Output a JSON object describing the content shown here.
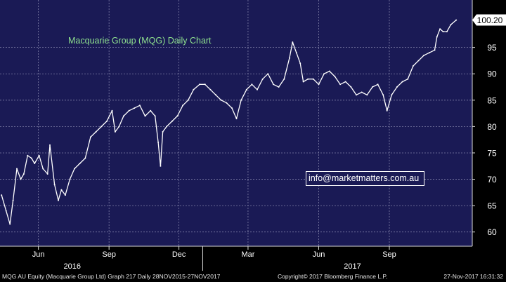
{
  "chart_data": {
    "type": "line",
    "title": "Macquarie Group (MQG) Daily Chart",
    "watermark": "info@marketmatters.com.au",
    "last_value": "100.20",
    "y_ticks": [
      60,
      65,
      70,
      75,
      80,
      85,
      90,
      95
    ],
    "ylim": [
      57.3,
      104
    ],
    "x_ticks": [
      {
        "date": "2016-06-01",
        "label": "Jun"
      },
      {
        "date": "2016-09-01",
        "label": "Sep"
      },
      {
        "date": "2016-12-01",
        "label": "Dec"
      },
      {
        "date": "2017-03-01",
        "label": "Mar"
      },
      {
        "date": "2017-06-01",
        "label": "Jun"
      },
      {
        "date": "2017-09-01",
        "label": "Sep"
      }
    ],
    "years": [
      {
        "date": "2016-07-15",
        "label": "2016"
      },
      {
        "date": "2017-07-15",
        "label": "2017"
      }
    ],
    "xlim": [
      "2016-04-12",
      "2017-12-18"
    ],
    "series": [
      {
        "color": "#ffffff",
        "points": [
          [
            "2016-04-14",
            67
          ],
          [
            "2016-04-20",
            64
          ],
          [
            "2016-04-25",
            61.5
          ],
          [
            "2016-04-29",
            66
          ],
          [
            "2016-05-04",
            72
          ],
          [
            "2016-05-09",
            70
          ],
          [
            "2016-05-13",
            71
          ],
          [
            "2016-05-18",
            74.5
          ],
          [
            "2016-05-23",
            74
          ],
          [
            "2016-05-27",
            73
          ],
          [
            "2016-06-02",
            74.5
          ],
          [
            "2016-06-07",
            72
          ],
          [
            "2016-06-13",
            71
          ],
          [
            "2016-06-16",
            76.5
          ],
          [
            "2016-06-22",
            69
          ],
          [
            "2016-06-27",
            66
          ],
          [
            "2016-07-01",
            68
          ],
          [
            "2016-07-06",
            67
          ],
          [
            "2016-07-12",
            70
          ],
          [
            "2016-07-18",
            72
          ],
          [
            "2016-07-25",
            73
          ],
          [
            "2016-08-01",
            74
          ],
          [
            "2016-08-08",
            78
          ],
          [
            "2016-08-15",
            79
          ],
          [
            "2016-08-22",
            80
          ],
          [
            "2016-08-29",
            81
          ],
          [
            "2016-09-05",
            83
          ],
          [
            "2016-09-09",
            79
          ],
          [
            "2016-09-14",
            80
          ],
          [
            "2016-09-20",
            82
          ],
          [
            "2016-09-27",
            83
          ],
          [
            "2016-10-04",
            83.5
          ],
          [
            "2016-10-11",
            84
          ],
          [
            "2016-10-18",
            82
          ],
          [
            "2016-10-25",
            83
          ],
          [
            "2016-10-31",
            82
          ],
          [
            "2016-11-04",
            77
          ],
          [
            "2016-11-07",
            72.5
          ],
          [
            "2016-11-10",
            79
          ],
          [
            "2016-11-15",
            80
          ],
          [
            "2016-11-22",
            81
          ],
          [
            "2016-11-29",
            82
          ],
          [
            "2016-12-06",
            84
          ],
          [
            "2016-12-13",
            85
          ],
          [
            "2016-12-20",
            87
          ],
          [
            "2016-12-28",
            88
          ],
          [
            "2017-01-04",
            88
          ],
          [
            "2017-01-11",
            87
          ],
          [
            "2017-01-18",
            86
          ],
          [
            "2017-01-25",
            85
          ],
          [
            "2017-02-01",
            84.5
          ],
          [
            "2017-02-08",
            83.5
          ],
          [
            "2017-02-14",
            81.5
          ],
          [
            "2017-02-20",
            85
          ],
          [
            "2017-02-27",
            87
          ],
          [
            "2017-03-06",
            88
          ],
          [
            "2017-03-13",
            87
          ],
          [
            "2017-03-20",
            89
          ],
          [
            "2017-03-27",
            90
          ],
          [
            "2017-04-03",
            88
          ],
          [
            "2017-04-10",
            87.5
          ],
          [
            "2017-04-17",
            89
          ],
          [
            "2017-04-24",
            93
          ],
          [
            "2017-04-28",
            96
          ],
          [
            "2017-05-03",
            94
          ],
          [
            "2017-05-08",
            92
          ],
          [
            "2017-05-12",
            88.5
          ],
          [
            "2017-05-18",
            89
          ],
          [
            "2017-05-25",
            89
          ],
          [
            "2017-06-01",
            88
          ],
          [
            "2017-06-08",
            90
          ],
          [
            "2017-06-15",
            90.5
          ],
          [
            "2017-06-22",
            89.5
          ],
          [
            "2017-06-29",
            88
          ],
          [
            "2017-07-06",
            88.5
          ],
          [
            "2017-07-13",
            87.5
          ],
          [
            "2017-07-20",
            86
          ],
          [
            "2017-07-27",
            86.5
          ],
          [
            "2017-08-03",
            86
          ],
          [
            "2017-08-10",
            87.5
          ],
          [
            "2017-08-17",
            88
          ],
          [
            "2017-08-24",
            86
          ],
          [
            "2017-08-29",
            83
          ],
          [
            "2017-09-04",
            86
          ],
          [
            "2017-09-11",
            87.5
          ],
          [
            "2017-09-18",
            88.5
          ],
          [
            "2017-09-25",
            89
          ],
          [
            "2017-10-02",
            91.5
          ],
          [
            "2017-10-09",
            92.5
          ],
          [
            "2017-10-16",
            93.5
          ],
          [
            "2017-10-23",
            94
          ],
          [
            "2017-10-30",
            94.5
          ],
          [
            "2017-11-02",
            97
          ],
          [
            "2017-11-06",
            98.5
          ],
          [
            "2017-11-10",
            98
          ],
          [
            "2017-11-15",
            98
          ],
          [
            "2017-11-20",
            99.3
          ],
          [
            "2017-11-27",
            100.2
          ]
        ]
      }
    ]
  },
  "footer": {
    "left": "MQG AU Equity (Macquarie Group Ltd) Graph 217  Daily 28NOV2015-27NOV2017",
    "center": "Copyright© 2017 Bloomberg Finance L.P.",
    "right": "27-Nov-2017 16:31:32"
  },
  "colors": {
    "plot_bg": "#1a1a55",
    "axis_bg": "#000000",
    "grid": "#8080a8",
    "price": "#ffffff",
    "title": "#8ee08e"
  }
}
